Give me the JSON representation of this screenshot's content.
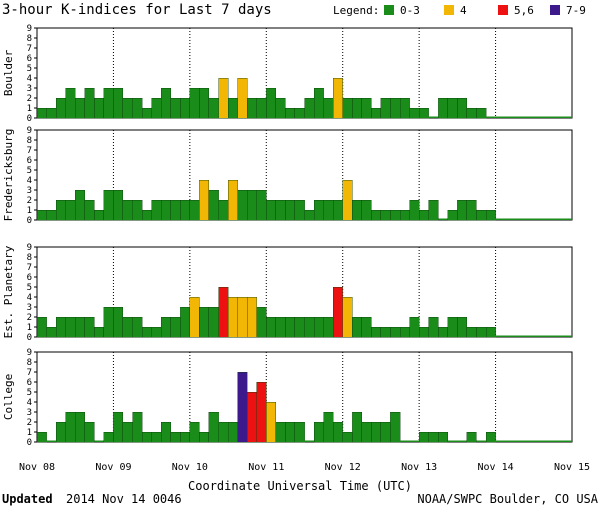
{
  "header": {
    "title": "3-hour K-indices for Last 7 days"
  },
  "legend": {
    "label": "Legend:",
    "items": [
      {
        "label": "0-3",
        "color": "#1a8c1a"
      },
      {
        "label": "4",
        "color": "#f2b705"
      },
      {
        "label": "5,6",
        "color": "#ee1111"
      },
      {
        "label": "7-9",
        "color": "#3d1a8c"
      }
    ]
  },
  "footer": {
    "updated_label": "Updated",
    "updated_value": "2014 Nov 14 0046",
    "source": "NOAA/SWPC Boulder, CO USA"
  },
  "chart_data": {
    "type": "bar",
    "title": "3-hour K-indices for Last 7 days",
    "xlabel": "Coordinate Universal Time (UTC)",
    "ylim": [
      0,
      9
    ],
    "y_ticks": [
      "0",
      "1",
      "2",
      "3",
      "4",
      "5",
      "6",
      "7",
      "8",
      "9"
    ],
    "x_ticks": [
      "Nov 08",
      "Nov 09",
      "Nov 10",
      "Nov 11",
      "Nov 12",
      "Nov 13",
      "Nov 14",
      "Nov 15"
    ],
    "grid": "vertical dotted lines at day boundaries",
    "series": [
      {
        "name": "Boulder",
        "values": [
          1,
          1,
          2,
          3,
          2,
          3,
          2,
          3,
          3,
          2,
          2,
          1,
          2,
          3,
          2,
          2,
          3,
          3,
          2,
          4,
          2,
          4,
          2,
          2,
          3,
          2,
          1,
          1,
          2,
          3,
          2,
          4,
          2,
          2,
          2,
          1,
          2,
          2,
          2,
          1,
          1,
          0,
          2,
          2,
          2,
          1,
          1,
          0,
          0,
          0,
          0,
          0,
          0,
          0,
          0,
          0
        ]
      },
      {
        "name": "Fredericksburg",
        "values": [
          1,
          1,
          2,
          2,
          3,
          2,
          1,
          3,
          3,
          2,
          2,
          1,
          2,
          2,
          2,
          2,
          2,
          4,
          3,
          2,
          4,
          3,
          3,
          3,
          2,
          2,
          2,
          2,
          1,
          2,
          2,
          2,
          4,
          2,
          2,
          1,
          1,
          1,
          1,
          2,
          1,
          2,
          0,
          1,
          2,
          2,
          1,
          1,
          0,
          0,
          0,
          0,
          0,
          0,
          0,
          0
        ]
      },
      {
        "name": "Est. Planetary",
        "values": [
          2,
          1,
          2,
          2,
          2,
          2,
          1,
          3,
          3,
          2,
          2,
          1,
          1,
          2,
          2,
          3,
          4,
          3,
          3,
          5,
          4,
          4,
          4,
          3,
          2,
          2,
          2,
          2,
          2,
          2,
          2,
          5,
          4,
          2,
          2,
          1,
          1,
          1,
          1,
          2,
          1,
          2,
          1,
          2,
          2,
          1,
          1,
          1,
          0,
          0,
          0,
          0,
          0,
          0,
          0,
          0
        ]
      },
      {
        "name": "College",
        "values": [
          1,
          0,
          2,
          3,
          3,
          2,
          0,
          1,
          3,
          2,
          3,
          1,
          1,
          2,
          1,
          1,
          2,
          1,
          3,
          2,
          2,
          7,
          5,
          6,
          4,
          2,
          2,
          2,
          0,
          2,
          3,
          2,
          1,
          3,
          2,
          2,
          2,
          3,
          0,
          0,
          1,
          1,
          1,
          0,
          0,
          1,
          0,
          1,
          0,
          0,
          0,
          0,
          0,
          0,
          0,
          0
        ]
      }
    ]
  }
}
